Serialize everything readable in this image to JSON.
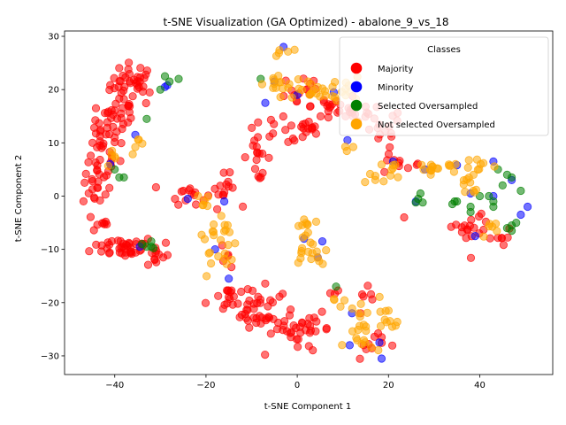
{
  "chart_data": {
    "type": "scatter",
    "title": "t-SNE Visualization (GA Optimized) - abalone_9_vs_18",
    "xlabel": "t-SNE Component 1",
    "ylabel": "t-SNE Component 2",
    "xlim": [
      -51,
      56
    ],
    "ylim": [
      -33.5,
      31
    ],
    "xticks": [
      -40,
      -20,
      0,
      20,
      40
    ],
    "yticks": [
      -30,
      -20,
      -10,
      0,
      10,
      20,
      30
    ],
    "grid": false,
    "legend": {
      "title": "Classes",
      "placement": "upper-right",
      "entries": [
        "Majority",
        "Minority",
        "Selected Oversampled",
        "Not selected Oversampled"
      ]
    },
    "series": [
      {
        "name": "Majority",
        "color": "#ff0000",
        "clusters": [
          [
            -36,
            21,
            2.5,
            2,
            40
          ],
          [
            -40,
            14,
            2,
            2,
            30
          ],
          [
            -43,
            8,
            2,
            2.5,
            25
          ],
          [
            -44,
            2,
            1.5,
            2,
            20
          ],
          [
            -43,
            -5,
            1,
            1,
            8
          ],
          [
            -38,
            -9.5,
            3.5,
            1,
            40
          ],
          [
            -31,
            -11,
            1.5,
            1.5,
            12
          ],
          [
            -24,
            0.5,
            2,
            1,
            14
          ],
          [
            -16,
            1,
            1.5,
            1.5,
            14
          ],
          [
            -15,
            -11,
            0.8,
            1.5,
            5
          ],
          [
            -15,
            -19,
            2.5,
            1.5,
            20
          ],
          [
            -9,
            -21.5,
            2.5,
            1.5,
            20
          ],
          [
            -5,
            -23,
            2,
            2,
            16
          ],
          [
            0,
            -25,
            3,
            1.5,
            20
          ],
          [
            4,
            -25,
            1.5,
            1.5,
            10
          ],
          [
            -9,
            8,
            1.5,
            2.5,
            18
          ],
          [
            -4,
            13,
            1.5,
            1,
            8
          ],
          [
            2,
            12,
            2,
            1,
            15
          ],
          [
            1,
            20,
            2.5,
            2,
            14
          ],
          [
            7,
            17,
            2,
            2,
            16
          ],
          [
            13,
            15.5,
            2,
            1,
            14
          ],
          [
            18,
            12.5,
            2.5,
            2,
            16
          ],
          [
            21,
            6,
            2,
            1,
            6
          ],
          [
            25,
            5.5,
            2,
            0.5,
            4
          ],
          [
            36,
            -6,
            1.5,
            1,
            10
          ],
          [
            41,
            -6.5,
            1.5,
            1.5,
            8
          ],
          [
            45,
            -7.5,
            1,
            1,
            6
          ],
          [
            8,
            -19,
            1,
            1,
            3
          ],
          [
            15,
            -20.5,
            1.5,
            1.5,
            6
          ],
          [
            19,
            -27,
            2,
            1,
            6
          ],
          [
            16,
            -28,
            1,
            1,
            4
          ],
          [
            38,
            -12,
            0.3,
            0.3,
            1
          ],
          [
            23.5,
            -4,
            0.3,
            0.3,
            1
          ],
          [
            -7,
            -16.5,
            0.3,
            0.3,
            1
          ]
        ]
      },
      {
        "name": "Minority",
        "color": "#0000ff",
        "points": [
          [
            -3,
            28
          ],
          [
            -29,
            20.5
          ],
          [
            -28.5,
            20.8
          ],
          [
            -7,
            17.5
          ],
          [
            -5,
            21.5
          ],
          [
            0,
            19
          ],
          [
            8,
            19.5
          ],
          [
            11,
            10.5
          ],
          [
            21,
            6.5
          ],
          [
            28,
            5
          ],
          [
            35,
            5.8
          ],
          [
            43,
            6.5
          ],
          [
            -41,
            6
          ],
          [
            -35.5,
            11.5
          ],
          [
            -34.5,
            -9.5
          ],
          [
            -24,
            -0.5
          ],
          [
            -16,
            -1
          ],
          [
            -18,
            -10
          ],
          [
            -15,
            -15.5
          ],
          [
            1.5,
            -8
          ],
          [
            5.5,
            -8.5
          ],
          [
            4.5,
            -11.5
          ],
          [
            26,
            -1
          ],
          [
            38,
            0.5
          ],
          [
            43,
            0
          ],
          [
            47,
            3
          ],
          [
            49,
            -3.5
          ],
          [
            50.5,
            -2
          ],
          [
            39,
            -7.5
          ],
          [
            12,
            -22
          ],
          [
            18,
            -27.5
          ],
          [
            18.5,
            -30.5
          ],
          [
            11.5,
            -28
          ]
        ]
      },
      {
        "name": "Selected Oversampled",
        "color": "#008000",
        "points": [
          [
            -29,
            22.5
          ],
          [
            -28,
            21.5
          ],
          [
            -30,
            20
          ],
          [
            -26,
            22
          ],
          [
            -8,
            22
          ],
          [
            -40,
            5
          ],
          [
            -39,
            3.5
          ],
          [
            -38,
            3.5
          ],
          [
            -33,
            14.5
          ],
          [
            -33,
            -9.5
          ],
          [
            -34,
            -9
          ],
          [
            -32,
            -8.5
          ],
          [
            -32,
            -9.5
          ],
          [
            -31.5,
            -9.8
          ],
          [
            26.5,
            -0.5
          ],
          [
            27,
            0.5
          ],
          [
            26,
            -1.2
          ],
          [
            27.5,
            -1.2
          ],
          [
            35,
            -1
          ],
          [
            34,
            -1.5
          ],
          [
            38,
            -2
          ],
          [
            38,
            -3
          ],
          [
            40,
            0
          ],
          [
            43,
            -1
          ],
          [
            45,
            2
          ],
          [
            44,
            5
          ],
          [
            46,
            4
          ],
          [
            47,
            3.5
          ],
          [
            49,
            1
          ],
          [
            43,
            -2
          ],
          [
            42,
            0
          ],
          [
            46,
            -6
          ],
          [
            47,
            -5.5
          ],
          [
            47,
            -6.5
          ],
          [
            48,
            -5
          ],
          [
            34.5,
            -1
          ],
          [
            8.5,
            -17
          ]
        ]
      },
      {
        "name": "Not selected Oversampled",
        "color": "#ffa500",
        "clusters": [
          [
            -3,
            27,
            1,
            0.7,
            5
          ],
          [
            -4,
            22,
            1.2,
            1,
            6
          ],
          [
            -2,
            20,
            2,
            1,
            10
          ],
          [
            3,
            20.5,
            2,
            1,
            10
          ],
          [
            8,
            20,
            2,
            1,
            8
          ],
          [
            12,
            20,
            2,
            1,
            8
          ],
          [
            -35,
            9.5,
            0.8,
            0.8,
            5
          ],
          [
            -40,
            7,
            1,
            1,
            5
          ],
          [
            -21,
            -1,
            1,
            1.5,
            6
          ],
          [
            -19,
            -9,
            1.5,
            1.5,
            10
          ],
          [
            -16,
            -5.5,
            1,
            2,
            10
          ],
          [
            -15,
            -13,
            1,
            1,
            4
          ],
          [
            1,
            -6,
            1,
            1.5,
            8
          ],
          [
            2,
            -10,
            1.5,
            1.5,
            12
          ],
          [
            5,
            -10.5,
            1,
            1,
            5
          ],
          [
            8,
            -20,
            1,
            1,
            4
          ],
          [
            14,
            -23,
            2,
            2,
            12
          ],
          [
            19,
            -24,
            2,
            1.5,
            10
          ],
          [
            14,
            -28,
            2,
            1,
            8
          ],
          [
            18,
            3,
            1.5,
            1,
            6
          ],
          [
            21,
            5,
            1.5,
            0.8,
            6
          ],
          [
            30,
            5,
            2.5,
            1,
            12
          ],
          [
            33,
            6,
            1,
            0.5,
            4
          ],
          [
            38,
            2,
            1.5,
            1.5,
            10
          ],
          [
            40,
            6,
            1.5,
            0.7,
            8
          ],
          [
            43,
            -6,
            1.5,
            1,
            6
          ],
          [
            11,
            9.5,
            0.8,
            0.8,
            3
          ]
        ]
      }
    ]
  }
}
